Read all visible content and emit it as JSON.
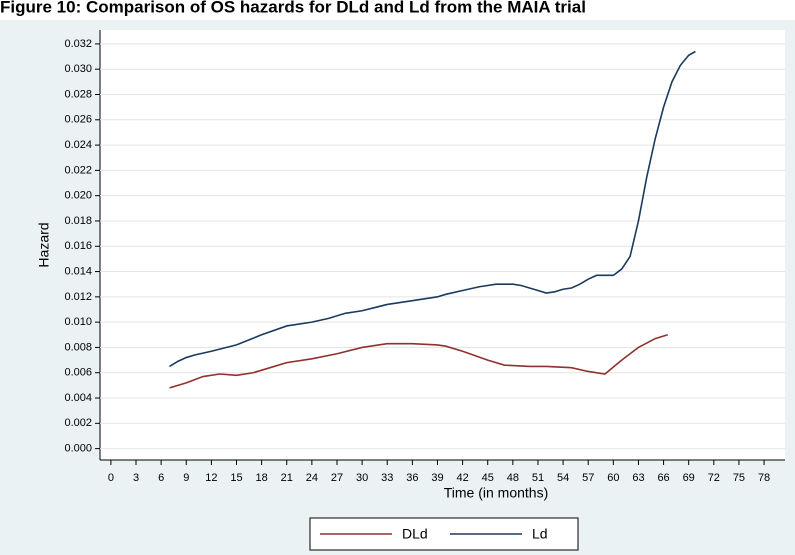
{
  "chart_data": {
    "type": "line",
    "title": "Figure 10: Comparison of OS hazards for DLd and Ld from the MAIA trial",
    "x_label": "Time (in months)",
    "y_label": "Hazard",
    "series": [
      {
        "name": "DLd",
        "color": "#903030",
        "x": [
          7,
          9,
          11,
          13,
          15,
          17,
          19,
          21,
          24,
          27,
          30,
          33,
          36,
          39,
          40,
          42,
          45,
          47,
          50,
          52,
          55,
          57,
          59,
          61,
          63,
          65,
          66.5
        ],
        "values": [
          0.0048,
          0.0052,
          0.0057,
          0.0059,
          0.0058,
          0.006,
          0.0064,
          0.0068,
          0.0071,
          0.0075,
          0.008,
          0.0083,
          0.0083,
          0.0082,
          0.0081,
          0.0077,
          0.007,
          0.0066,
          0.0065,
          0.0065,
          0.0064,
          0.0061,
          0.0059,
          0.007,
          0.008,
          0.0087,
          0.009
        ]
      },
      {
        "name": "Ld",
        "color": "#1a3a5e",
        "x": [
          7,
          8,
          9,
          10,
          12,
          15,
          18,
          21,
          24,
          26,
          28,
          30,
          33,
          36,
          39,
          40,
          42,
          44,
          46,
          48,
          49,
          51,
          52,
          53,
          54,
          55,
          56,
          57,
          58,
          60,
          61,
          62,
          63,
          64,
          65,
          66,
          67,
          68,
          69,
          69.8
        ],
        "values": [
          0.0065,
          0.0069,
          0.0072,
          0.0074,
          0.0077,
          0.0082,
          0.009,
          0.0097,
          0.01,
          0.0103,
          0.0107,
          0.0109,
          0.0114,
          0.0117,
          0.012,
          0.0122,
          0.0125,
          0.0128,
          0.013,
          0.013,
          0.0129,
          0.0125,
          0.0123,
          0.0124,
          0.0126,
          0.0127,
          0.013,
          0.0134,
          0.0137,
          0.0137,
          0.0142,
          0.0152,
          0.018,
          0.0215,
          0.0245,
          0.027,
          0.029,
          0.0303,
          0.0311,
          0.0314
        ]
      }
    ],
    "xlim": [
      -1.3,
      80.5
    ],
    "xticks": [
      0,
      3,
      6,
      9,
      12,
      15,
      18,
      21,
      24,
      27,
      30,
      33,
      36,
      39,
      42,
      45,
      48,
      51,
      54,
      57,
      60,
      63,
      66,
      69,
      72,
      75,
      78
    ],
    "ylim": [
      -0.0009,
      0.0331
    ],
    "yticks": [
      {
        "value": 0,
        "label": "0.000"
      },
      {
        "value": 0.002,
        "label": "0.002"
      },
      {
        "value": 0.004,
        "label": "0.004"
      },
      {
        "value": 0.006,
        "label": "0.006"
      },
      {
        "value": 0.008,
        "label": "0.008"
      },
      {
        "value": 0.01,
        "label": "0.010"
      },
      {
        "value": 0.012,
        "label": "0.012"
      },
      {
        "value": 0.014,
        "label": "0.014"
      },
      {
        "value": 0.016,
        "label": "0.016"
      },
      {
        "value": 0.018,
        "label": "0.018"
      },
      {
        "value": 0.02,
        "label": "0.020"
      },
      {
        "value": 0.022,
        "label": "0.022"
      },
      {
        "value": 0.024,
        "label": "0.024"
      },
      {
        "value": 0.026,
        "label": "0.026"
      },
      {
        "value": 0.028,
        "label": "0.028"
      },
      {
        "value": 0.03,
        "label": "0.030"
      },
      {
        "value": 0.032,
        "label": "0.032"
      }
    ],
    "grid": true,
    "legend": "bottom"
  }
}
